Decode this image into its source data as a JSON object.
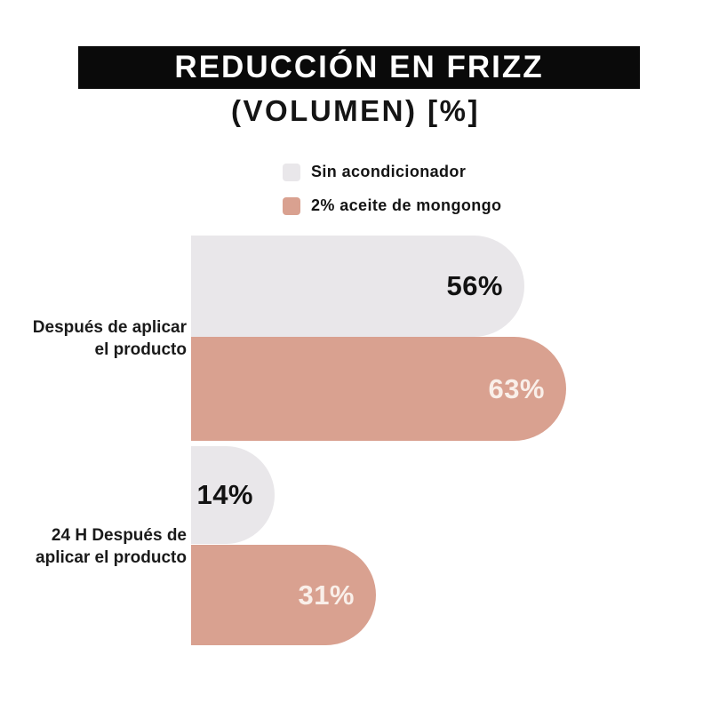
{
  "header": {
    "title": "REDUCCIÓN EN FRIZZ",
    "subtitle": "(VOLUMEN) [%]"
  },
  "colors": {
    "background": "#ffffff",
    "title_bar": "#0a0a0a",
    "title_text": "#ffffff",
    "body_text": "#141414",
    "series_gray": "#e9e7ea",
    "series_salmon": "#d9a190",
    "value_on_gray": "#121212",
    "value_on_salmon": "#f9efe9"
  },
  "chart_data": {
    "type": "bar",
    "orientation": "horizontal",
    "title": "REDUCCIÓN EN FRIZZ",
    "subtitle": "(VOLUMEN) [%]",
    "unit": "%",
    "grid": false,
    "legend_position": "top-center",
    "xlim": [
      0,
      87
    ],
    "categories": [
      "Después de aplicar el producto",
      "24 H Después de aplicar el producto"
    ],
    "category_lines": [
      [
        "Después de aplicar",
        "el producto"
      ],
      [
        "24 H Después de",
        "aplicar el producto"
      ]
    ],
    "series": [
      {
        "name": "Sin acondicionador",
        "values": [
          56,
          14
        ],
        "color": "#e9e7ea",
        "label_color": "#121212"
      },
      {
        "name": "2% aceite de mongongo",
        "values": [
          63,
          31
        ],
        "color": "#d9a190",
        "label_color": "#f9efe9"
      }
    ]
  }
}
